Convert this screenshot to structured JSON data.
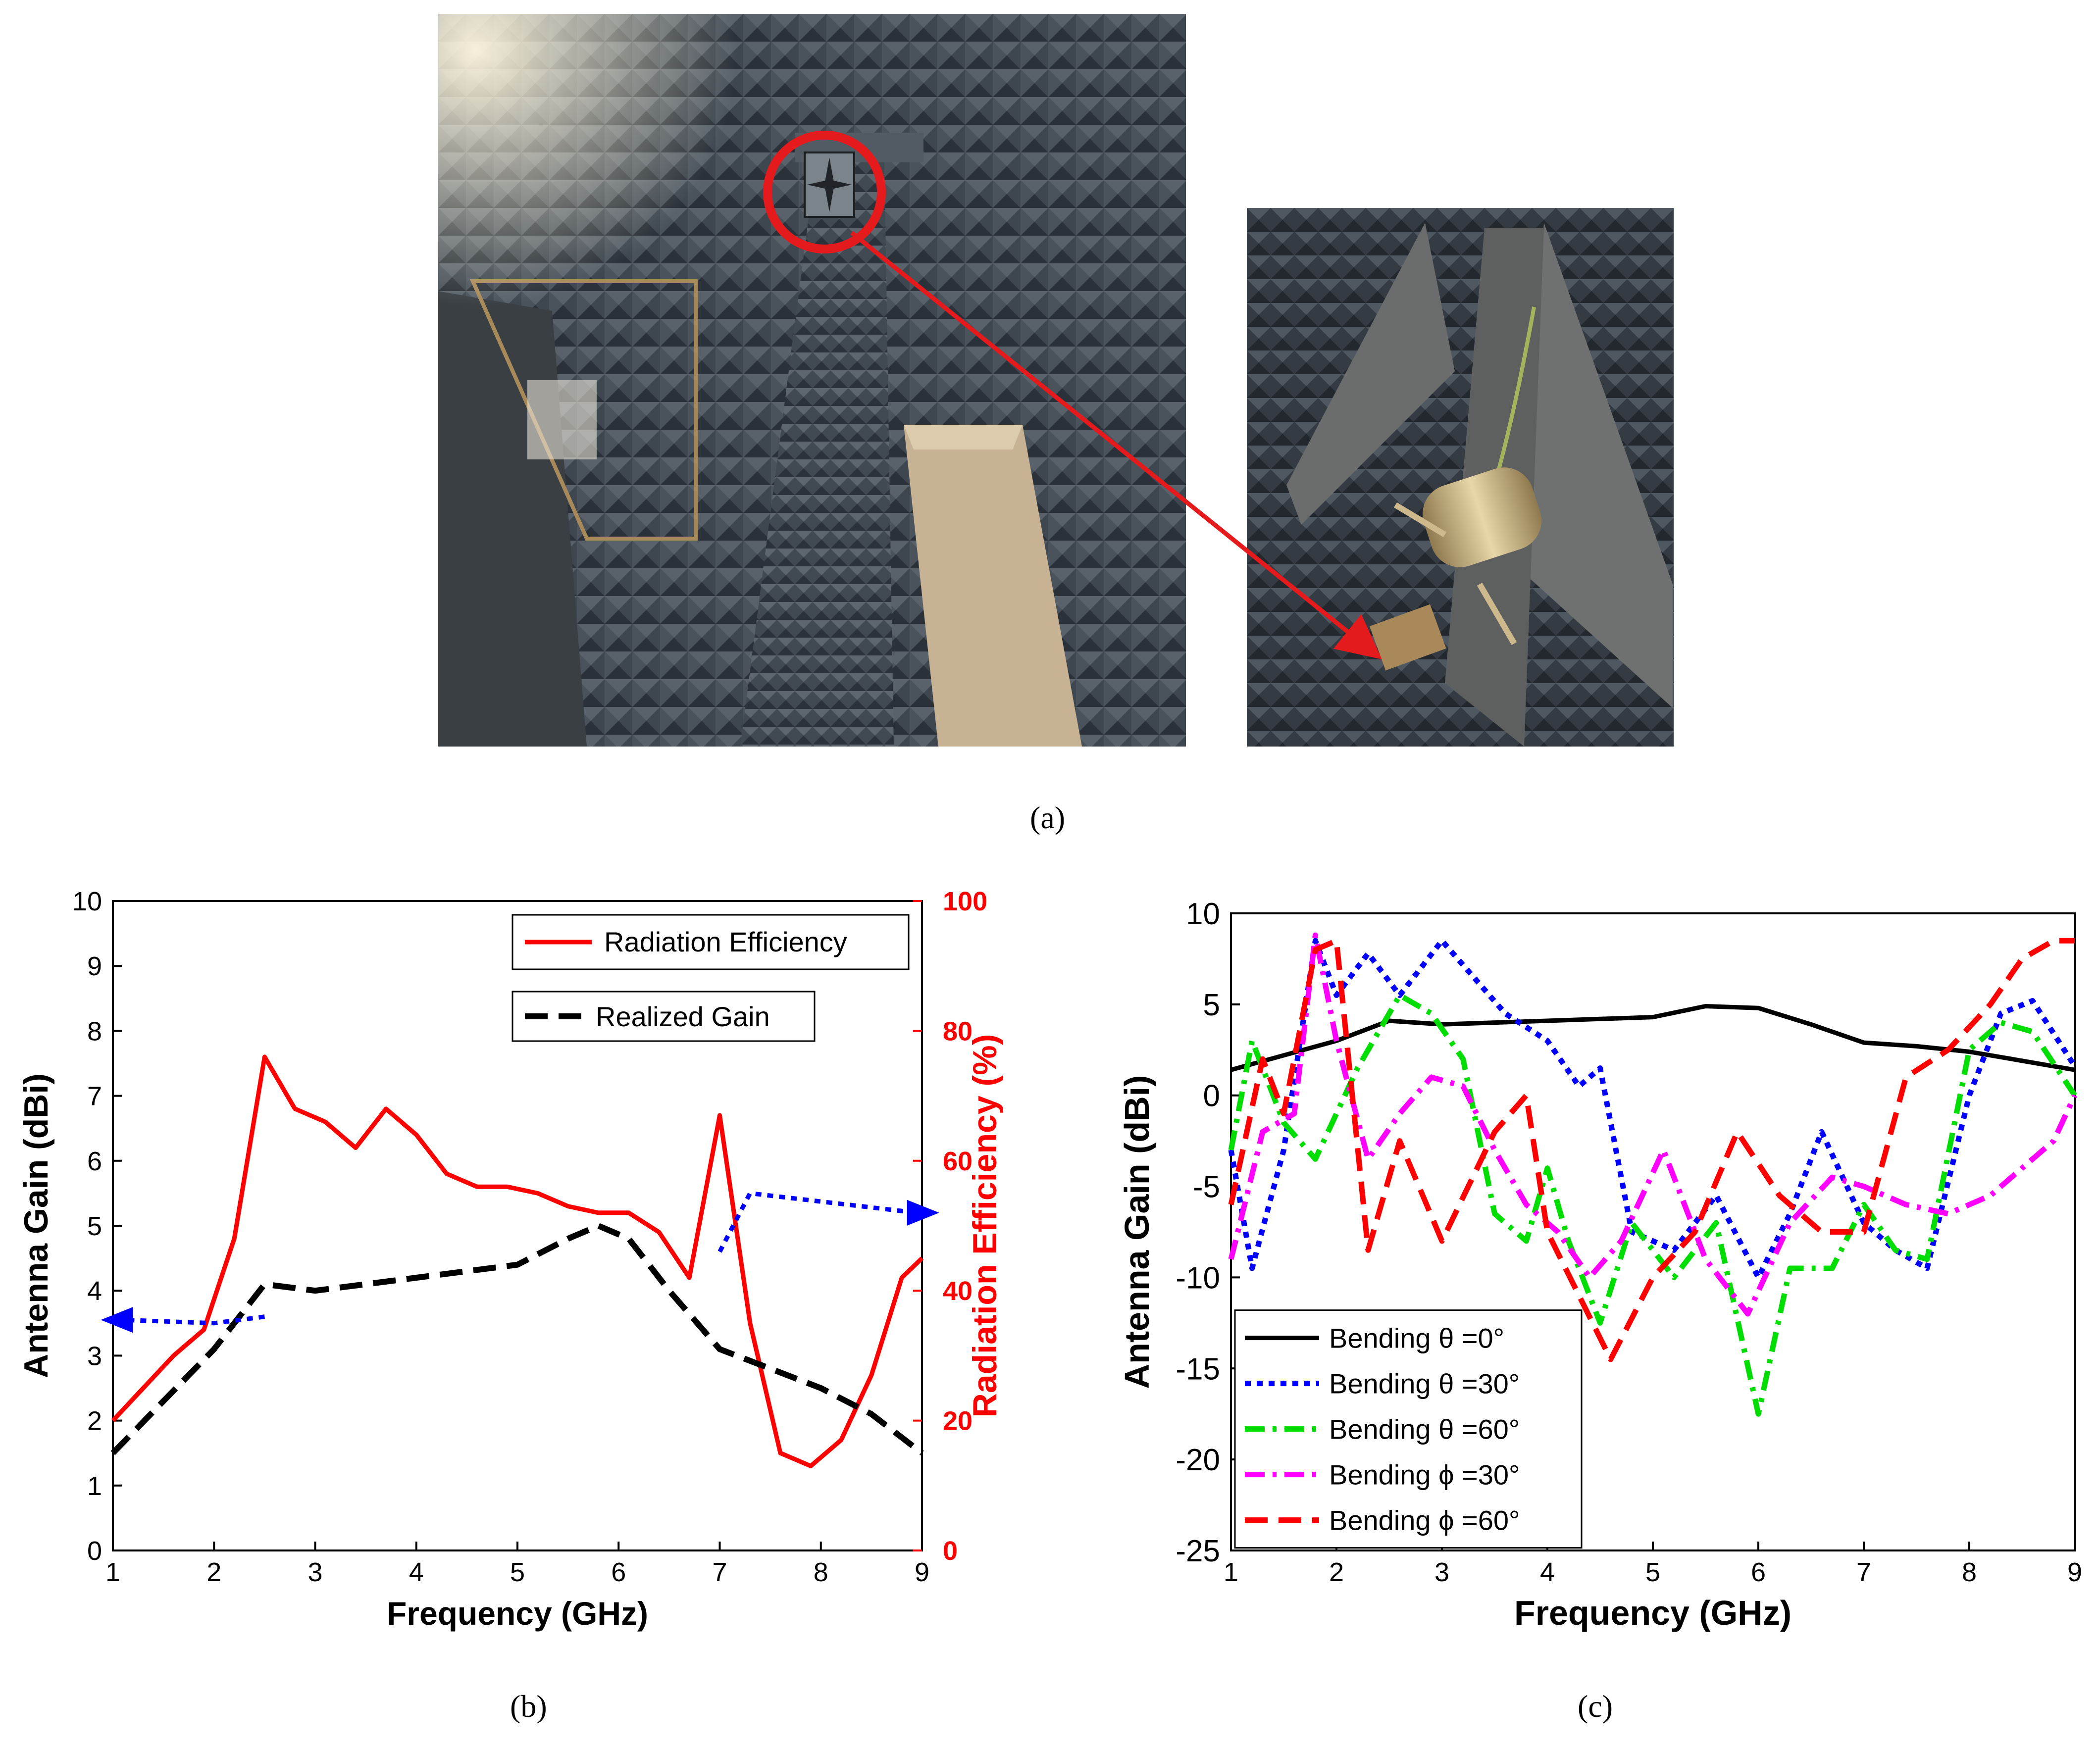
{
  "panel_a": {
    "caption": "(a)",
    "photo_main": "anechoic-chamber-measurement-setup",
    "photo_inset": "antenna-under-test-closeup",
    "highlight_color": "#e41a1c"
  },
  "panel_b": {
    "caption": "(b)"
  },
  "panel_c": {
    "caption": "(c)"
  },
  "chart_data": [
    {
      "id": "b",
      "type": "line",
      "title": "",
      "xlabel": "Frequency (GHz)",
      "ylabel": "Antenna Gain (dBi)",
      "ylabel_right": "Radiation Efficiency (%)",
      "xlim": [
        1,
        9
      ],
      "ylim": [
        0,
        10
      ],
      "ylim_right": [
        0,
        100
      ],
      "xticks": [
        "1",
        "2",
        "3",
        "4",
        "5",
        "6",
        "7",
        "8",
        "9"
      ],
      "yticks": [
        "0",
        "1",
        "2",
        "3",
        "4",
        "5",
        "6",
        "7",
        "8",
        "9",
        "10"
      ],
      "yticks_right": [
        "0",
        "20",
        "40",
        "60",
        "80",
        "100"
      ],
      "legend": {
        "placement": "top-right",
        "entries": [
          "Radiation Efficiency",
          "Realized Gain"
        ]
      },
      "series": [
        {
          "name": "Radiation Efficiency",
          "axis": "right",
          "color": "#ff0000",
          "style": "solid",
          "x": [
            1,
            1.3,
            1.6,
            1.9,
            2.2,
            2.5,
            2.8,
            3.1,
            3.4,
            3.7,
            4.0,
            4.3,
            4.6,
            4.9,
            5.2,
            5.5,
            5.8,
            6.1,
            6.4,
            6.7,
            7.0,
            7.3,
            7.6,
            7.9,
            8.2,
            8.5,
            8.8,
            9.0
          ],
          "values": [
            20,
            25,
            30,
            34,
            48,
            76,
            68,
            66,
            62,
            68,
            64,
            58,
            56,
            56,
            55,
            53,
            52,
            52,
            49,
            42,
            67,
            35,
            15,
            13,
            17,
            27,
            42,
            45
          ]
        },
        {
          "name": "Realized Gain",
          "axis": "left",
          "color": "#000000",
          "style": "dashed",
          "x": [
            1,
            1.5,
            2.0,
            2.5,
            3.0,
            3.5,
            4.0,
            4.5,
            5.0,
            5.5,
            5.8,
            6.1,
            6.5,
            7.0,
            7.5,
            8.0,
            8.5,
            9.0
          ],
          "values": [
            1.5,
            2.3,
            3.1,
            4.1,
            4.0,
            4.1,
            4.2,
            4.3,
            4.4,
            4.8,
            5.0,
            4.8,
            4.0,
            3.1,
            2.8,
            2.5,
            2.1,
            1.5
          ]
        }
      ],
      "annotations": [
        {
          "type": "arrow",
          "direction": "left",
          "color": "#0000ff",
          "points": [
            [
              2.5,
              3.6
            ],
            [
              2.0,
              3.5
            ],
            [
              1.1,
              3.55
            ]
          ]
        },
        {
          "type": "arrow",
          "direction": "right",
          "color": "#0000ff",
          "points": [
            [
              7.0,
              4.6
            ],
            [
              7.3,
              5.5
            ],
            [
              8.95,
              5.2
            ]
          ]
        }
      ]
    },
    {
      "id": "c",
      "type": "line",
      "title": "",
      "xlabel": "Frequency (GHz)",
      "ylabel": "Antenna Gain (dBi)",
      "xlim": [
        1,
        9
      ],
      "ylim": [
        -25,
        10
      ],
      "xticks": [
        "1",
        "2",
        "3",
        "4",
        "5",
        "6",
        "7",
        "8",
        "9"
      ],
      "yticks": [
        "-25",
        "-20",
        "-15",
        "-10",
        "-5",
        "0",
        "5",
        "10"
      ],
      "legend": {
        "placement": "bottom-left",
        "entries": [
          "Bending θ =0°",
          "Bending θ =30°",
          "Bending θ =60°",
          "Bending ϕ =30°",
          "Bending ϕ =60°"
        ]
      },
      "series": [
        {
          "name": "Bending θ =0°",
          "color": "#000000",
          "style": "solid",
          "x": [
            1,
            1.5,
            2,
            2.5,
            3,
            3.5,
            4,
            4.5,
            5,
            5.5,
            6,
            6.5,
            7,
            7.5,
            8,
            8.5,
            9
          ],
          "values": [
            1.4,
            2.2,
            3.0,
            4.1,
            3.9,
            4.0,
            4.1,
            4.2,
            4.3,
            4.9,
            4.8,
            3.9,
            2.9,
            2.7,
            2.4,
            1.9,
            1.4
          ]
        },
        {
          "name": "Bending θ =30°",
          "color": "#0000ff",
          "style": "dotted",
          "x": [
            1,
            1.2,
            1.5,
            1.8,
            2.0,
            2.3,
            2.6,
            3.0,
            3.3,
            3.6,
            4.0,
            4.3,
            4.5,
            4.8,
            5.2,
            5.6,
            6.0,
            6.3,
            6.6,
            7.0,
            7.3,
            7.6,
            8.0,
            8.3,
            8.6,
            9.0
          ],
          "values": [
            -3,
            -9.5,
            -3,
            8.5,
            5.5,
            7.8,
            5.5,
            8.5,
            6.5,
            4.5,
            3.0,
            0.5,
            1.5,
            -7.5,
            -8.5,
            -5.5,
            -10,
            -6.5,
            -2.0,
            -7.0,
            -8.5,
            -9.5,
            0,
            4.5,
            5.2,
            1.6
          ]
        },
        {
          "name": "Bending θ =60°",
          "color": "#00dd00",
          "style": "dashdot",
          "x": [
            1,
            1.2,
            1.5,
            1.8,
            2.2,
            2.6,
            2.9,
            3.2,
            3.5,
            3.8,
            4.0,
            4.2,
            4.5,
            4.8,
            5.2,
            5.6,
            6.0,
            6.3,
            6.7,
            7.0,
            7.3,
            7.6,
            8.0,
            8.3,
            8.6,
            9.0
          ],
          "values": [
            -3,
            3.0,
            -1.5,
            -3.5,
            1.5,
            5.5,
            4.5,
            2.0,
            -6.5,
            -8.0,
            -4.0,
            -8.0,
            -12.5,
            -7.0,
            -10.0,
            -7.0,
            -17.5,
            -9.5,
            -9.5,
            -6.0,
            -8.5,
            -9.0,
            2.5,
            4.0,
            3.5,
            0
          ]
        },
        {
          "name": "Bending ϕ =30°",
          "color": "#ff00ff",
          "style": "dashdot",
          "x": [
            1,
            1.3,
            1.6,
            1.8,
            2.0,
            2.3,
            2.6,
            2.9,
            3.2,
            3.5,
            3.8,
            4.1,
            4.4,
            4.7,
            5.1,
            5.5,
            5.9,
            6.3,
            6.7,
            7.0,
            7.4,
            7.8,
            8.2,
            8.5,
            8.8,
            9.0
          ],
          "values": [
            -9,
            -2,
            -1.0,
            8.8,
            3.0,
            -3.5,
            -1.0,
            1.0,
            0.5,
            -3.0,
            -6.0,
            -7.5,
            -10.0,
            -8.0,
            -3.0,
            -9.0,
            -12.0,
            -7.0,
            -4.5,
            -5.0,
            -6.0,
            -6.5,
            -5.5,
            -4.0,
            -2.5,
            0
          ]
        },
        {
          "name": "Bending ϕ =60°",
          "color": "#ff0000",
          "style": "dashed",
          "x": [
            1,
            1.3,
            1.5,
            1.8,
            2.0,
            2.3,
            2.6,
            3.0,
            3.5,
            3.8,
            4.0,
            4.3,
            4.6,
            5.0,
            5.4,
            5.8,
            6.2,
            6.6,
            7.0,
            7.4,
            7.8,
            8.2,
            8.5,
            8.8,
            9.0
          ],
          "values": [
            -6,
            2.0,
            -1.0,
            8.0,
            8.5,
            -8.5,
            -2.5,
            -8.0,
            -2.0,
            0.0,
            -7.5,
            -11.0,
            -14.5,
            -10.0,
            -7.5,
            -2.0,
            -5.5,
            -7.5,
            -7.5,
            1.0,
            2.5,
            5.0,
            7.5,
            8.5,
            8.5
          ]
        }
      ]
    }
  ]
}
